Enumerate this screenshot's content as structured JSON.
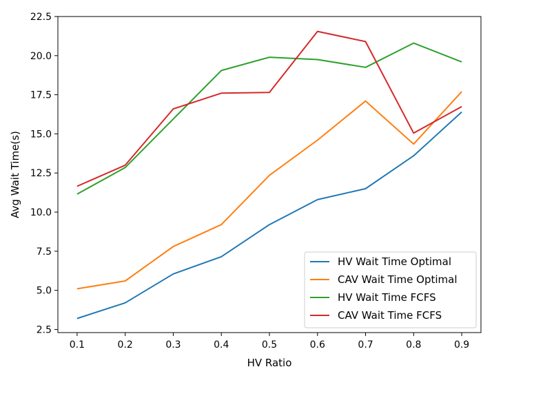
{
  "chart_data": {
    "type": "line",
    "title": "",
    "xlabel": "HV Ratio",
    "ylabel": "Avg Wait Time(s)",
    "x": [
      0.1,
      0.2,
      0.3,
      0.4,
      0.5,
      0.6,
      0.7,
      0.8,
      0.9
    ],
    "x_tick_labels": [
      "0.1",
      "0.2",
      "0.3",
      "0.4",
      "0.5",
      "0.6",
      "0.7",
      "0.8",
      "0.9"
    ],
    "xlim": [
      0.06,
      0.94
    ],
    "ylim": [
      2.3,
      22.5
    ],
    "y_ticks": [
      2.5,
      5.0,
      7.5,
      10.0,
      12.5,
      15.0,
      17.5,
      20.0,
      22.5
    ],
    "y_tick_labels": [
      "2.5",
      "5.0",
      "7.5",
      "10.0",
      "12.5",
      "15.0",
      "17.5",
      "20.0",
      "22.5"
    ],
    "grid": false,
    "legend_position": "lower-right",
    "series": [
      {
        "name": "HV Wait Time Optimal",
        "color": "#1f77b4",
        "values": [
          3.2,
          4.2,
          6.05,
          7.15,
          9.2,
          10.8,
          11.5,
          13.6,
          16.4
        ]
      },
      {
        "name": "CAV Wait Time Optimal",
        "color": "#ff7f0e",
        "values": [
          5.1,
          5.6,
          7.8,
          9.2,
          12.35,
          14.6,
          17.1,
          14.35,
          17.7
        ]
      },
      {
        "name": "HV Wait Time FCFS",
        "color": "#2ca02c",
        "values": [
          11.15,
          12.85,
          15.95,
          19.05,
          19.9,
          19.75,
          19.25,
          20.8,
          19.6
        ]
      },
      {
        "name": "CAV Wait Time FCFS",
        "color": "#d62728",
        "values": [
          11.65,
          13.0,
          16.6,
          17.6,
          17.65,
          21.55,
          20.9,
          15.05,
          16.75
        ]
      }
    ]
  }
}
